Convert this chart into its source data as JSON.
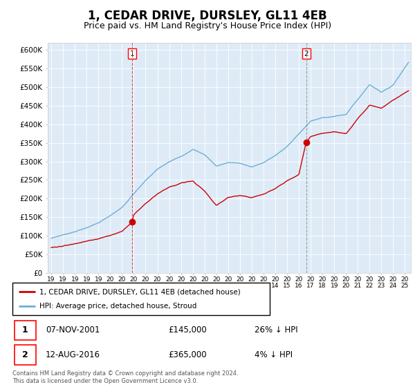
{
  "title": "1, CEDAR DRIVE, DURSLEY, GL11 4EB",
  "subtitle": "Price paid vs. HM Land Registry's House Price Index (HPI)",
  "ylabel_ticks": [
    "£0",
    "£50K",
    "£100K",
    "£150K",
    "£200K",
    "£250K",
    "£300K",
    "£350K",
    "£400K",
    "£450K",
    "£500K",
    "£550K",
    "£600K"
  ],
  "ytick_values": [
    0,
    50000,
    100000,
    150000,
    200000,
    250000,
    300000,
    350000,
    400000,
    450000,
    500000,
    550000,
    600000
  ],
  "xmin": 1994.7,
  "xmax": 2025.5,
  "ymin": 0,
  "ymax": 620000,
  "hpi_color": "#6baed6",
  "hpi_fill_color": "#deebf7",
  "price_color": "#cc0000",
  "marker1_date": 2001.86,
  "marker1_value": 145000,
  "marker1_label": "07-NOV-2001",
  "marker1_price": "£145,000",
  "marker1_hpi": "26% ↓ HPI",
  "marker2_date": 2016.62,
  "marker2_value": 365000,
  "marker2_label": "12-AUG-2016",
  "marker2_price": "£365,000",
  "marker2_hpi": "4% ↓ HPI",
  "legend_line1": "1, CEDAR DRIVE, DURSLEY, GL11 4EB (detached house)",
  "legend_line2": "HPI: Average price, detached house, Stroud",
  "footnote": "Contains HM Land Registry data © Crown copyright and database right 2024.\nThis data is licensed under the Open Government Licence v3.0.",
  "title_fontsize": 12,
  "subtitle_fontsize": 9
}
